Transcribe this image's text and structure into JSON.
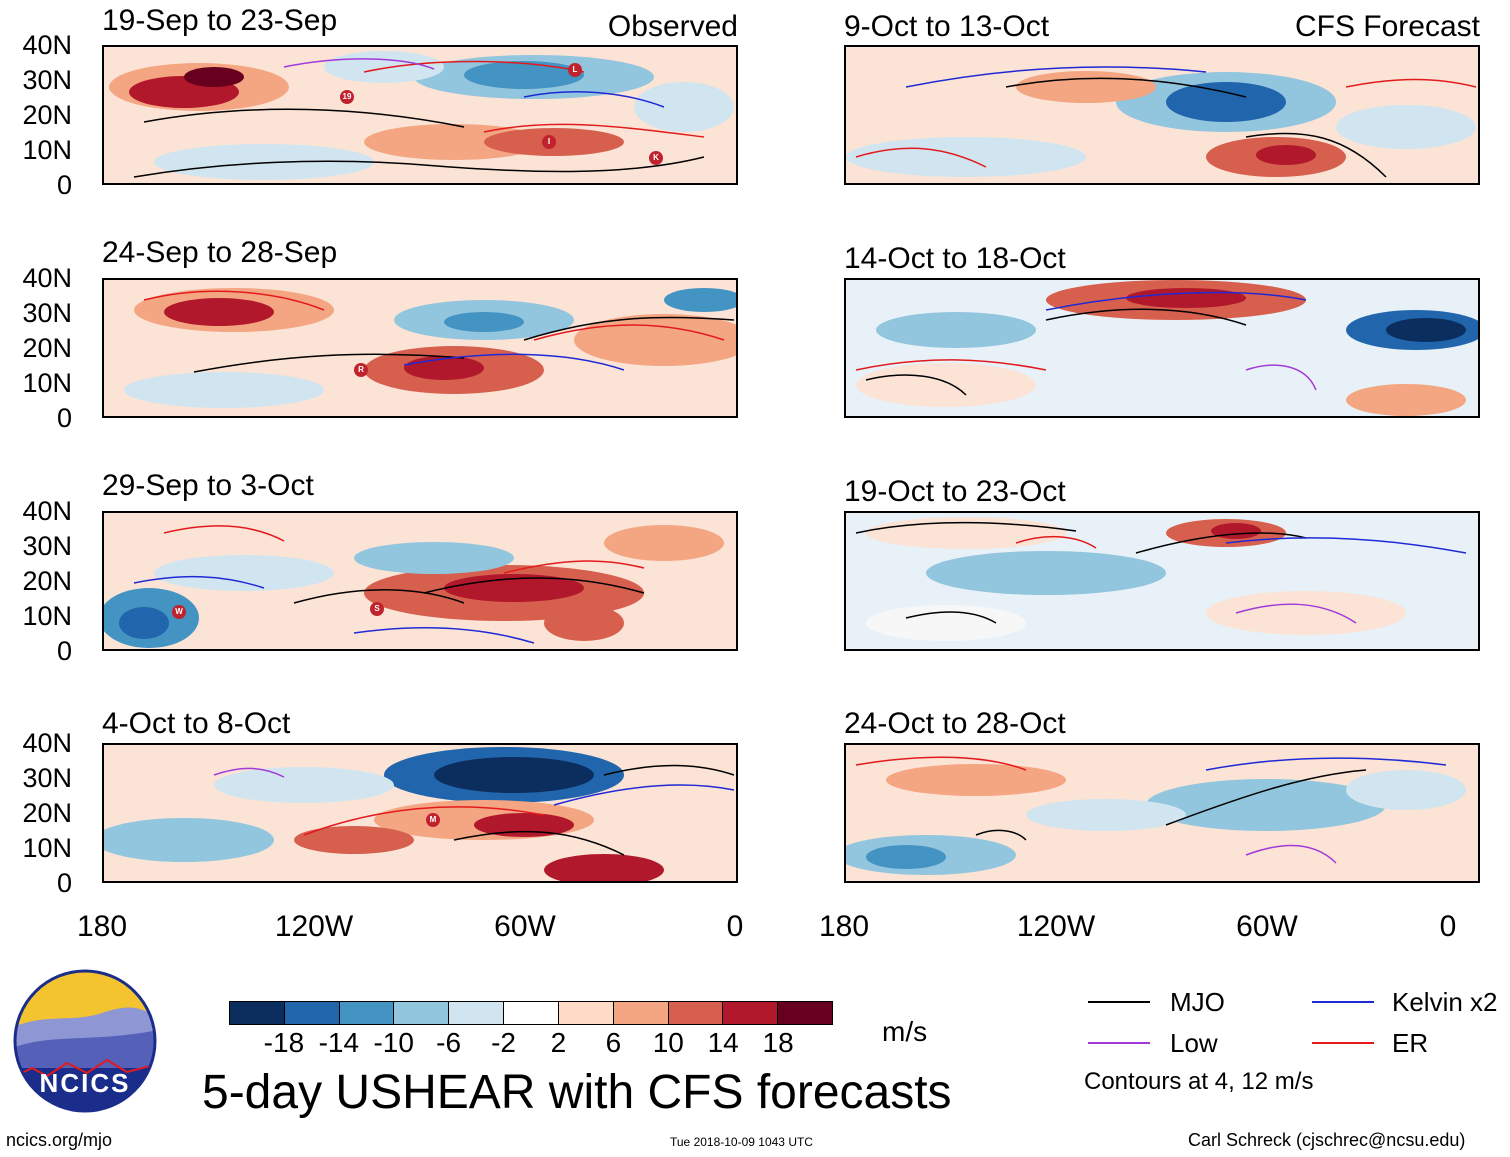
{
  "figure": {
    "title": "5-day USHEAR with CFS forecasts",
    "left_tag": "Observed",
    "right_tag": "CFS Forecast",
    "site": "ncics.org/mjo",
    "timestamp": "Tue 2018-10-09 1043 UTC",
    "author": "Carl Schreck (cjschrec@ncsu.edu)",
    "logo_text": "NCICS"
  },
  "axes": {
    "lat_labels": [
      "40N",
      "30N",
      "20N",
      "10N",
      "0"
    ],
    "lon_labels": [
      "180",
      "120W",
      "60W",
      "0"
    ]
  },
  "panels": [
    {
      "title": "19-Sep to 23-Sep",
      "storms": [
        "19",
        "L",
        "I",
        "K"
      ]
    },
    {
      "title": "24-Sep to 28-Sep",
      "storms": [
        "R"
      ]
    },
    {
      "title": "29-Sep to 3-Oct",
      "storms": [
        "W",
        "S"
      ]
    },
    {
      "title": "4-Oct to 8-Oct",
      "storms": [
        "M"
      ]
    },
    {
      "title": "9-Oct to 13-Oct",
      "storms": []
    },
    {
      "title": "14-Oct to 18-Oct",
      "storms": []
    },
    {
      "title": "19-Oct to 23-Oct",
      "storms": []
    },
    {
      "title": "24-Oct to 28-Oct",
      "storms": []
    }
  ],
  "colorbar": {
    "unit": "m/s",
    "labels": [
      "-18",
      "-14",
      "-10",
      "-6",
      "-2",
      "2",
      "6",
      "10",
      "14",
      "18"
    ],
    "colors": [
      "#0b2e5e",
      "#2166ac",
      "#4393c3",
      "#92c5de",
      "#d1e5f0",
      "#ffffff",
      "#fddbc7",
      "#f4a582",
      "#d6604d",
      "#b2182b",
      "#67001f"
    ]
  },
  "legend": {
    "items": [
      {
        "label": "MJO",
        "color": "#000000"
      },
      {
        "label": "Kelvin x2",
        "color": "#1f2ad6"
      },
      {
        "label": "Low",
        "color": "#a23ad8"
      },
      {
        "label": "ER",
        "color": "#e31a1c"
      }
    ],
    "note": "Contours at 4, 12 m/s"
  }
}
